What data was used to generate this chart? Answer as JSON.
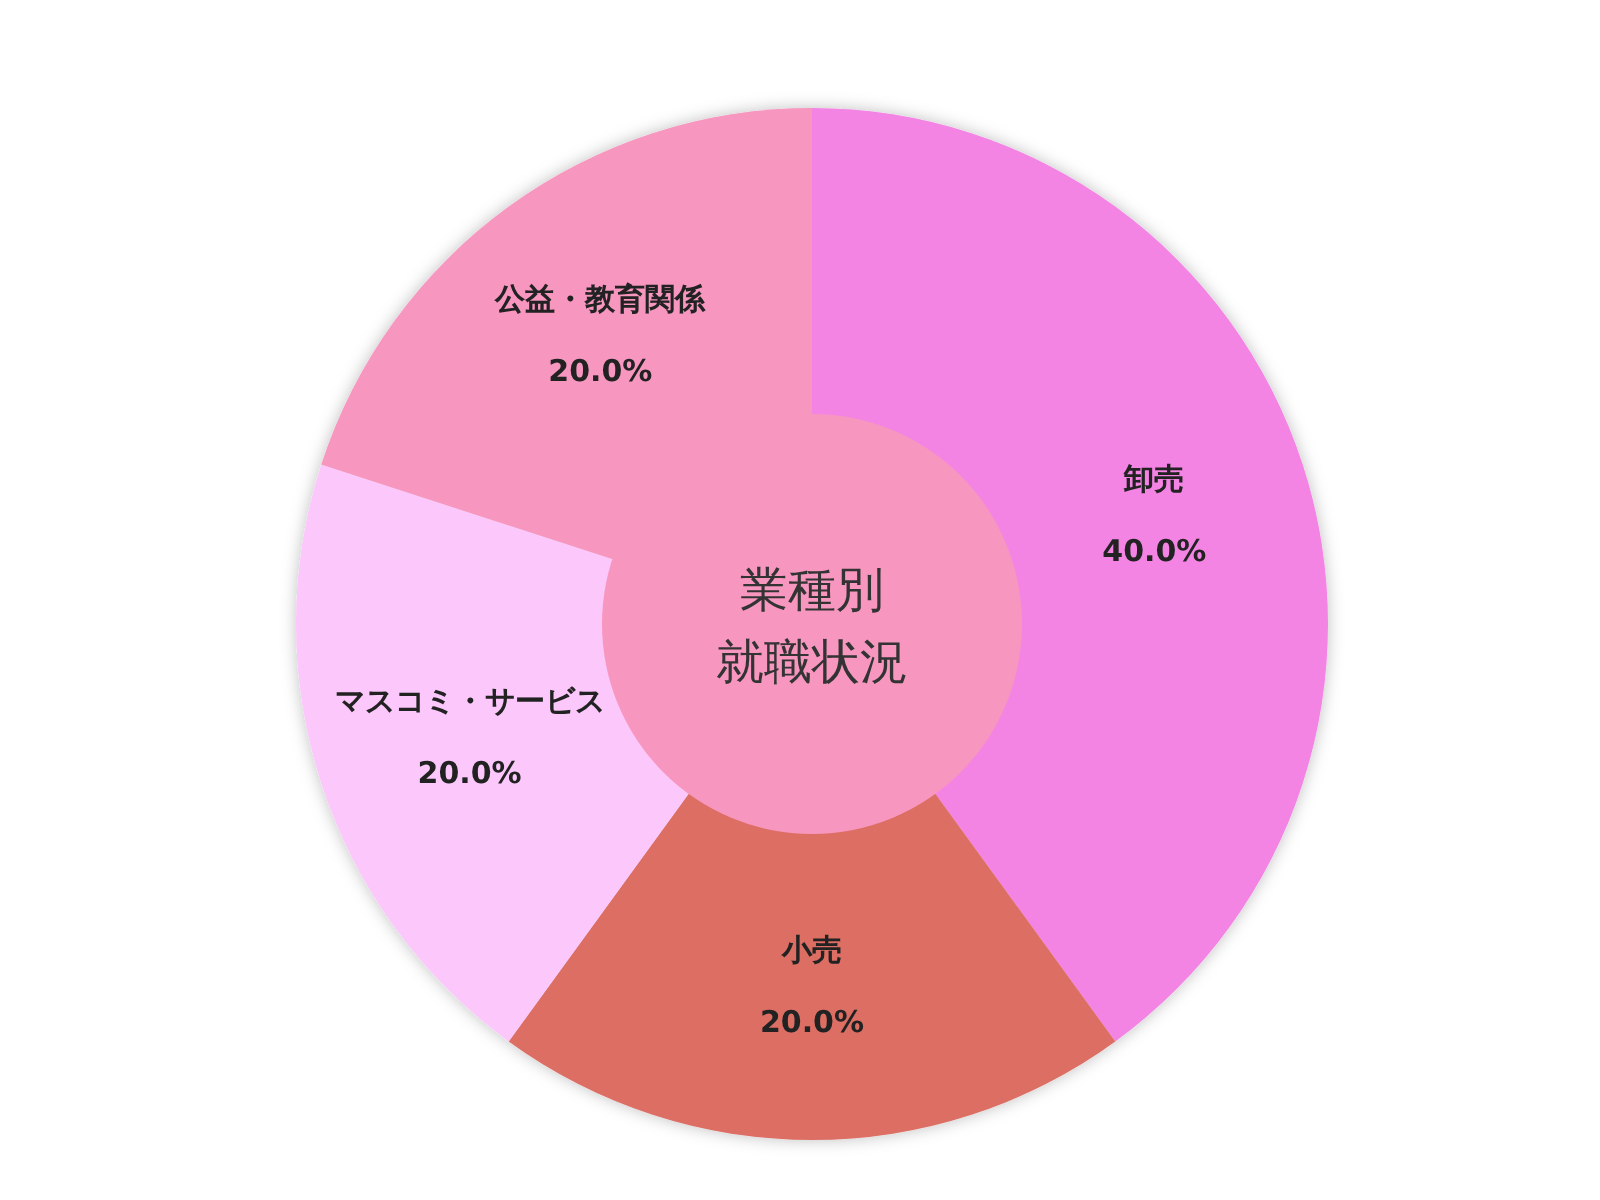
{
  "chart_data": {
    "type": "donut",
    "title": "業種別就職状況",
    "categories": [
      "卸売",
      "小売",
      "マスコミ・サービス",
      "公益・教育関係"
    ],
    "values": [
      40,
      20,
      20,
      20
    ],
    "value_labels": [
      "40.0%",
      "20.0%",
      "20.0%",
      "20.0%"
    ],
    "colors": [
      "#f484e4",
      "#dc6e64",
      "#fcc8fc",
      "#f796bf"
    ]
  }
}
